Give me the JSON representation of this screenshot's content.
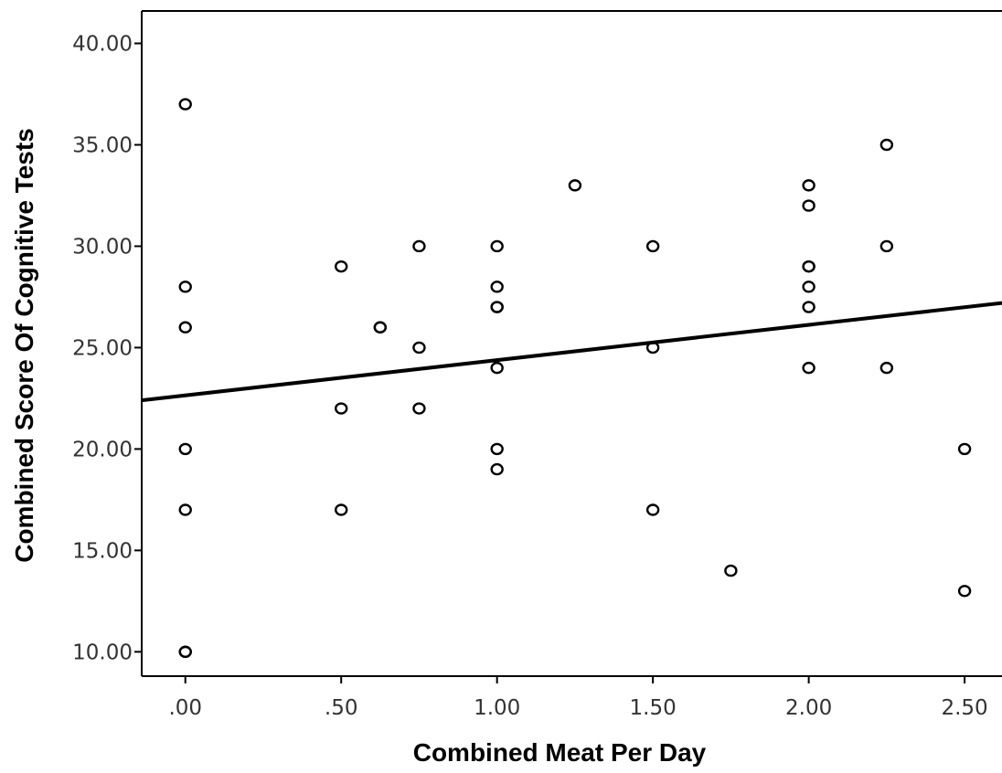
{
  "chart_data": {
    "type": "scatter",
    "xlabel": "Combined Meat Per Day",
    "ylabel": "Combined Score Of Cognitive Tests",
    "xlim": [
      -0.14,
      2.62
    ],
    "ylim": [
      8.8,
      41.6
    ],
    "xticks": [
      0,
      0.5,
      1.0,
      1.5,
      2.0,
      2.5
    ],
    "xtick_labels": [
      ".00",
      ".50",
      "1.00",
      "1.50",
      "2.00",
      "2.50"
    ],
    "yticks": [
      10,
      15,
      20,
      25,
      30,
      35,
      40
    ],
    "ytick_labels": [
      "10.00",
      "15.00",
      "20.00",
      "25.00",
      "30.00",
      "35.00",
      "40.00"
    ],
    "grid": false,
    "points": [
      {
        "x": 0,
        "y": 37
      },
      {
        "x": 0,
        "y": 28
      },
      {
        "x": 0,
        "y": 26
      },
      {
        "x": 0,
        "y": 20
      },
      {
        "x": 0,
        "y": 17
      },
      {
        "x": 0,
        "y": 10
      },
      {
        "x": 0,
        "y": 10
      },
      {
        "x": 0.5,
        "y": 29
      },
      {
        "x": 0.5,
        "y": 22
      },
      {
        "x": 0.5,
        "y": 17
      },
      {
        "x": 0.625,
        "y": 26
      },
      {
        "x": 0.625,
        "y": 26
      },
      {
        "x": 0.75,
        "y": 30
      },
      {
        "x": 0.75,
        "y": 25
      },
      {
        "x": 0.75,
        "y": 22
      },
      {
        "x": 1.0,
        "y": 30
      },
      {
        "x": 1.0,
        "y": 28
      },
      {
        "x": 1.0,
        "y": 27
      },
      {
        "x": 1.0,
        "y": 27
      },
      {
        "x": 1.0,
        "y": 24
      },
      {
        "x": 1.0,
        "y": 20
      },
      {
        "x": 1.0,
        "y": 19
      },
      {
        "x": 1.25,
        "y": 33
      },
      {
        "x": 1.5,
        "y": 30
      },
      {
        "x": 1.5,
        "y": 25
      },
      {
        "x": 1.5,
        "y": 17
      },
      {
        "x": 1.75,
        "y": 14
      },
      {
        "x": 2.0,
        "y": 33
      },
      {
        "x": 2.0,
        "y": 32
      },
      {
        "x": 2.0,
        "y": 29
      },
      {
        "x": 2.0,
        "y": 29
      },
      {
        "x": 2.0,
        "y": 28
      },
      {
        "x": 2.0,
        "y": 27
      },
      {
        "x": 2.0,
        "y": 24
      },
      {
        "x": 2.25,
        "y": 35
      },
      {
        "x": 2.25,
        "y": 30
      },
      {
        "x": 2.25,
        "y": 24
      },
      {
        "x": 2.5,
        "y": 20
      },
      {
        "x": 2.5,
        "y": 13
      }
    ],
    "fit_line": {
      "x": [
        -0.14,
        2.62
      ],
      "y": [
        22.4,
        27.2
      ]
    },
    "colors": {
      "marker": "#000000",
      "line": "#000000",
      "axis": "#000000"
    }
  }
}
